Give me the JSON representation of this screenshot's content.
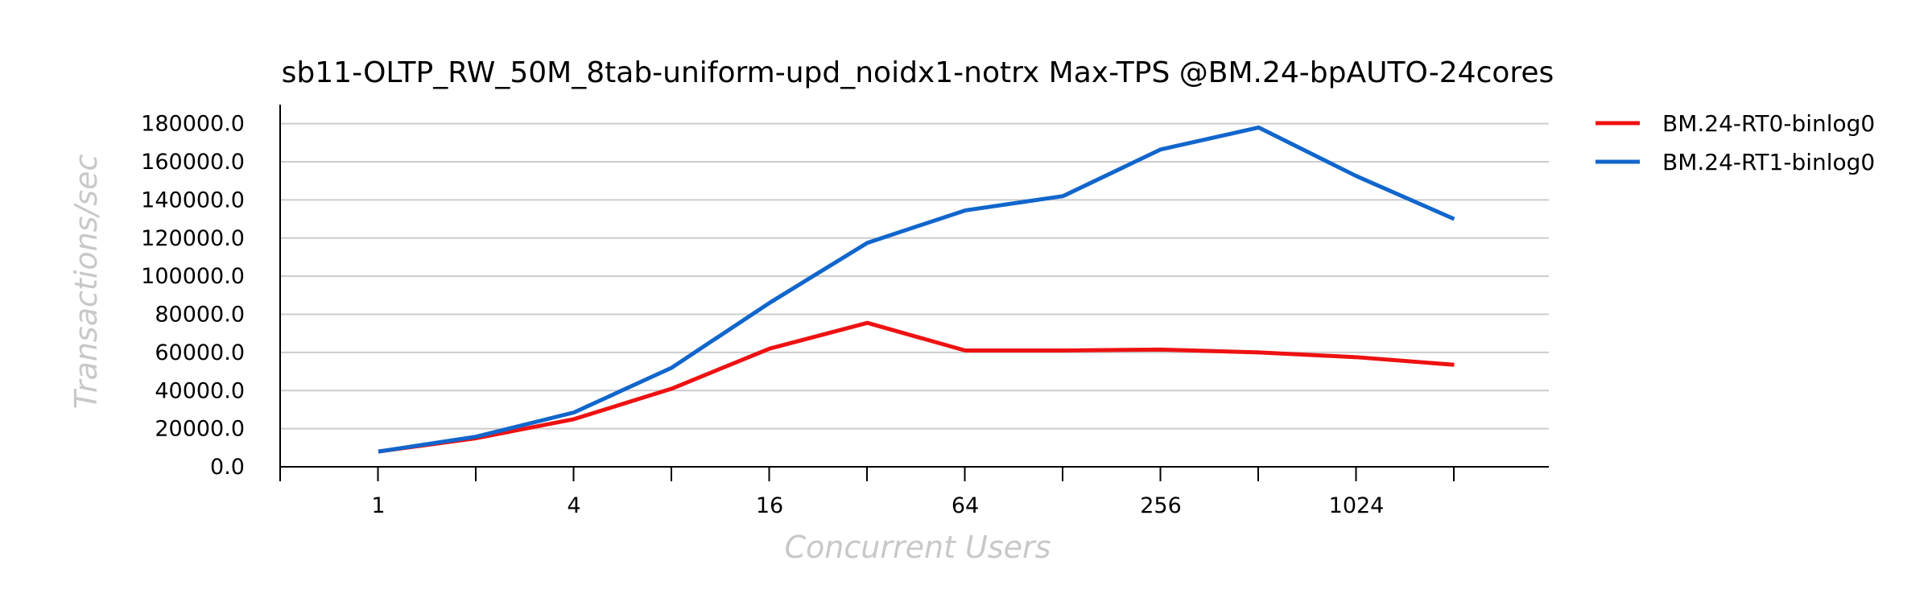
{
  "chart_data": {
    "type": "line",
    "title": "sb11-OLTP_RW_50M_8tab-uniform-upd_noidx1-notrx Max-TPS @BM.24-bpAUTO-24cores",
    "xlabel": "Concurrent Users",
    "ylabel": "Transactions/sec",
    "x_scale": "log2",
    "x": [
      1,
      2,
      4,
      8,
      16,
      32,
      64,
      128,
      256,
      512,
      1024,
      2048
    ],
    "x_tick_labels": [
      "1",
      "4",
      "16",
      "64",
      "256",
      "1024"
    ],
    "x_tick_values": [
      1,
      4,
      16,
      64,
      256,
      1024
    ],
    "ylim": [
      0,
      190000
    ],
    "y_ticks": [
      "0.0",
      "20000.0",
      "40000.0",
      "60000.0",
      "80000.0",
      "100000.0",
      "120000.0",
      "140000.0",
      "160000.0",
      "180000.0"
    ],
    "y_tick_values": [
      0,
      20000,
      40000,
      60000,
      80000,
      100000,
      120000,
      140000,
      160000,
      180000
    ],
    "grid": "horizontal",
    "legend_position": "right",
    "series": [
      {
        "name": "BM.24-RT0-binlog0",
        "color": "#ee1111",
        "values": [
          8000,
          15000,
          25000,
          41000,
          62000,
          75500,
          61000,
          61000,
          61500,
          60000,
          57500,
          53500
        ]
      },
      {
        "name": "BM.24-RT1-binlog0",
        "color": "#1166cc",
        "values": [
          8000,
          15800,
          28500,
          52000,
          86000,
          117500,
          134500,
          142000,
          166500,
          178000,
          152500,
          130000
        ]
      }
    ]
  }
}
